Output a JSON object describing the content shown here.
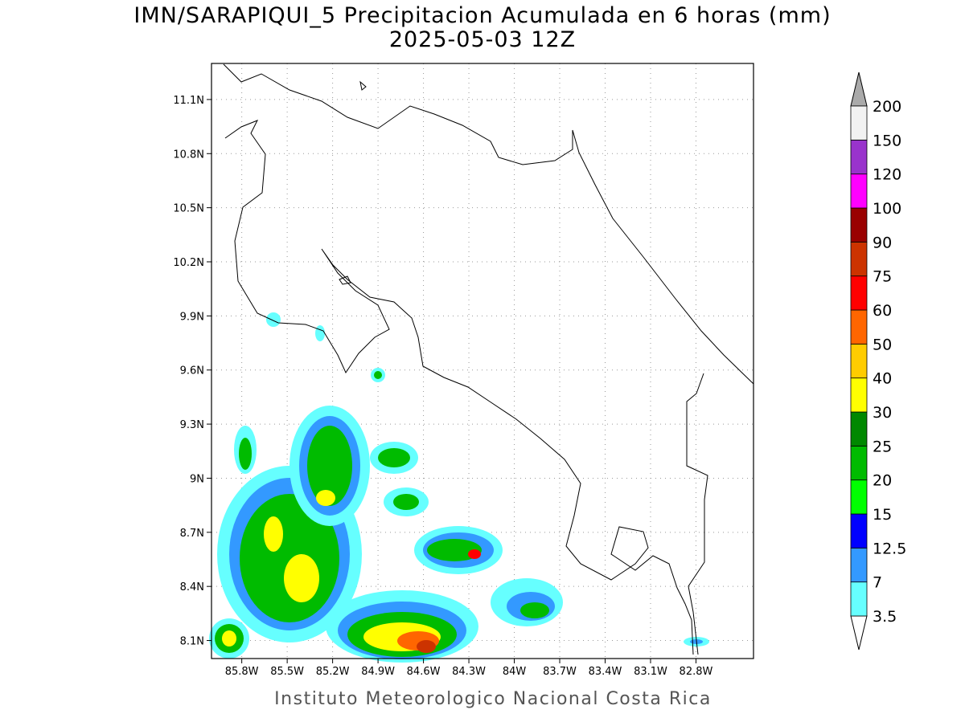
{
  "title": "IMN/SARAPIQUI_5 Precipitacion Acumulada en 6 horas (mm)",
  "subtitle": "2025-05-03 12Z",
  "footer": "Instituto Meteorologico Nacional Costa Rica",
  "map": {
    "xlim": [
      -86.0,
      -82.42
    ],
    "ylim": [
      8.0,
      11.3
    ],
    "xticks": [
      {
        "value": -85.8,
        "label": "85.8W"
      },
      {
        "value": -85.5,
        "label": "85.5W"
      },
      {
        "value": -85.2,
        "label": "85.2W"
      },
      {
        "value": -84.9,
        "label": "84.9W"
      },
      {
        "value": -84.6,
        "label": "84.6W"
      },
      {
        "value": -84.3,
        "label": "84.3W"
      },
      {
        "value": -84.0,
        "label": "84W"
      },
      {
        "value": -83.7,
        "label": "83.7W"
      },
      {
        "value": -83.4,
        "label": "83.4W"
      },
      {
        "value": -83.1,
        "label": "83.1W"
      },
      {
        "value": -82.8,
        "label": "82.8W"
      }
    ],
    "yticks": [
      {
        "value": 8.1,
        "label": "8.1N"
      },
      {
        "value": 8.4,
        "label": "8.4N"
      },
      {
        "value": 8.7,
        "label": "8.7N"
      },
      {
        "value": 9.0,
        "label": "9N"
      },
      {
        "value": 9.3,
        "label": "9.3N"
      },
      {
        "value": 9.6,
        "label": "9.6N"
      },
      {
        "value": 9.9,
        "label": "9.9N"
      },
      {
        "value": 10.2,
        "label": "10.2N"
      },
      {
        "value": 10.5,
        "label": "10.5N"
      },
      {
        "value": 10.8,
        "label": "10.8N"
      },
      {
        "value": 11.1,
        "label": "11.1N"
      }
    ],
    "grid": true
  },
  "colorbar": {
    "levels": [
      3.5,
      7,
      12.5,
      15,
      20,
      25,
      30,
      40,
      50,
      60,
      75,
      90,
      100,
      120,
      150,
      200
    ],
    "colors": [
      "#ffffff",
      "#66ffff",
      "#3399ff",
      "#0000ff",
      "#00ff00",
      "#00bb00",
      "#008800",
      "#ffff00",
      "#ffcc00",
      "#ff6600",
      "#ff0000",
      "#cc3300",
      "#990000",
      "#ff00ff",
      "#9933cc",
      "#f2f2f2",
      "#aaaaaa"
    ]
  }
}
